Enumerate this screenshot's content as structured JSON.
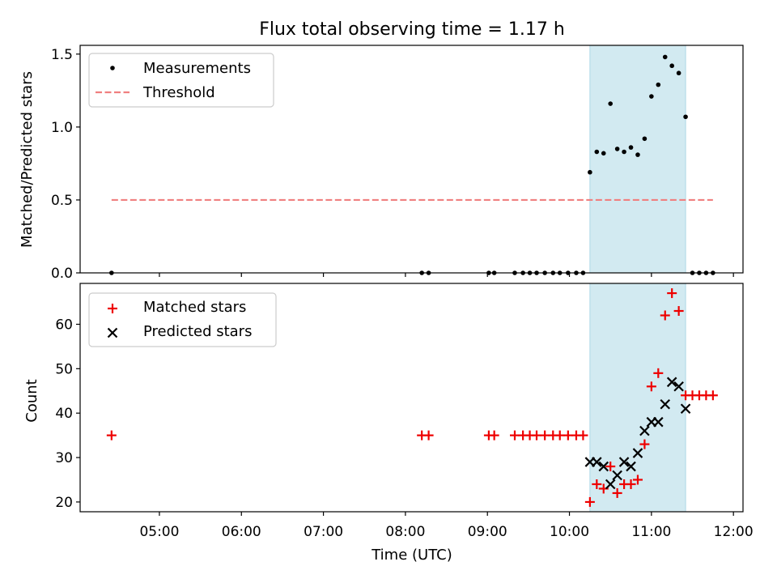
{
  "title": "Flux total observing time = 1.17 h",
  "colors": {
    "measurement": "#000000",
    "threshold": "#f08080",
    "matched": "#ee0000",
    "predicted": "#000000",
    "span": "#add8e6"
  },
  "chart_data": [
    {
      "type": "scatter",
      "ylabel": "Matched/Predicted stars",
      "xlabel": "",
      "xlim": [
        "04:02",
        "12:07"
      ],
      "ylim": [
        0,
        1.56
      ],
      "yticks": [
        "0.0",
        "0.5",
        "1.0",
        "1.5"
      ],
      "legend_position": "top-left",
      "shaded_span": [
        "10:15",
        "11:25"
      ],
      "threshold": {
        "name": "Threshold",
        "y": 0.5,
        "x_range": [
          "04:25",
          "11:45"
        ],
        "style": "dashed"
      },
      "series": [
        {
          "name": "Measurements",
          "points": [
            [
              "04:25",
              0.0
            ],
            [
              "08:12",
              0.0
            ],
            [
              "08:17",
              0.0
            ],
            [
              "09:01",
              0.0
            ],
            [
              "09:05",
              0.0
            ],
            [
              "09:20",
              0.0
            ],
            [
              "09:26",
              0.0
            ],
            [
              "09:31",
              0.0
            ],
            [
              "09:36",
              0.0
            ],
            [
              "09:42",
              0.0
            ],
            [
              "09:48",
              0.0
            ],
            [
              "09:53",
              0.0
            ],
            [
              "09:59",
              0.0
            ],
            [
              "10:05",
              0.0
            ],
            [
              "10:10",
              0.0
            ],
            [
              "10:15",
              0.69
            ],
            [
              "10:20",
              0.83
            ],
            [
              "10:25",
              0.82
            ],
            [
              "10:30",
              1.16
            ],
            [
              "10:35",
              0.85
            ],
            [
              "10:40",
              0.83
            ],
            [
              "10:45",
              0.86
            ],
            [
              "10:50",
              0.81
            ],
            [
              "10:55",
              0.92
            ],
            [
              "11:00",
              1.21
            ],
            [
              "11:05",
              1.29
            ],
            [
              "11:10",
              1.48
            ],
            [
              "11:15",
              1.42
            ],
            [
              "11:20",
              1.37
            ],
            [
              "11:25",
              1.07
            ],
            [
              "11:30",
              0.0
            ],
            [
              "11:35",
              0.0
            ],
            [
              "11:40",
              0.0
            ],
            [
              "11:45",
              0.0
            ]
          ]
        }
      ]
    },
    {
      "type": "scatter",
      "ylabel": "Count",
      "xlabel": "Time (UTC)",
      "xlim": [
        "04:02",
        "12:07"
      ],
      "ylim": [
        17.8,
        69.2
      ],
      "yticks": [
        "20",
        "30",
        "40",
        "50",
        "60"
      ],
      "xticks": [
        "05:00",
        "06:00",
        "07:00",
        "08:00",
        "09:00",
        "10:00",
        "11:00",
        "12:00"
      ],
      "legend_position": "top-left",
      "shaded_span": [
        "10:15",
        "11:25"
      ],
      "series": [
        {
          "name": "Matched stars",
          "marker": "+",
          "points": [
            [
              "04:25",
              35
            ],
            [
              "08:12",
              35
            ],
            [
              "08:17",
              35
            ],
            [
              "09:01",
              35
            ],
            [
              "09:05",
              35
            ],
            [
              "09:20",
              35
            ],
            [
              "09:26",
              35
            ],
            [
              "09:31",
              35
            ],
            [
              "09:36",
              35
            ],
            [
              "09:42",
              35
            ],
            [
              "09:48",
              35
            ],
            [
              "09:53",
              35
            ],
            [
              "09:59",
              35
            ],
            [
              "10:05",
              35
            ],
            [
              "10:10",
              35
            ],
            [
              "10:15",
              20
            ],
            [
              "10:20",
              24
            ],
            [
              "10:25",
              23
            ],
            [
              "10:30",
              28
            ],
            [
              "10:35",
              22
            ],
            [
              "10:40",
              24
            ],
            [
              "10:45",
              24
            ],
            [
              "10:50",
              25
            ],
            [
              "10:55",
              33
            ],
            [
              "11:00",
              46
            ],
            [
              "11:05",
              49
            ],
            [
              "11:10",
              62
            ],
            [
              "11:15",
              67
            ],
            [
              "11:20",
              63
            ],
            [
              "11:25",
              44
            ],
            [
              "11:30",
              44
            ],
            [
              "11:35",
              44
            ],
            [
              "11:40",
              44
            ],
            [
              "11:45",
              44
            ]
          ]
        },
        {
          "name": "Predicted stars",
          "marker": "x",
          "points": [
            [
              "10:15",
              29
            ],
            [
              "10:20",
              29
            ],
            [
              "10:25",
              28
            ],
            [
              "10:30",
              24
            ],
            [
              "10:35",
              26
            ],
            [
              "10:40",
              29
            ],
            [
              "10:45",
              28
            ],
            [
              "10:50",
              31
            ],
            [
              "10:55",
              36
            ],
            [
              "11:00",
              38
            ],
            [
              "11:05",
              38
            ],
            [
              "11:10",
              42
            ],
            [
              "11:15",
              47
            ],
            [
              "11:20",
              46
            ],
            [
              "11:25",
              41
            ]
          ]
        }
      ]
    }
  ]
}
